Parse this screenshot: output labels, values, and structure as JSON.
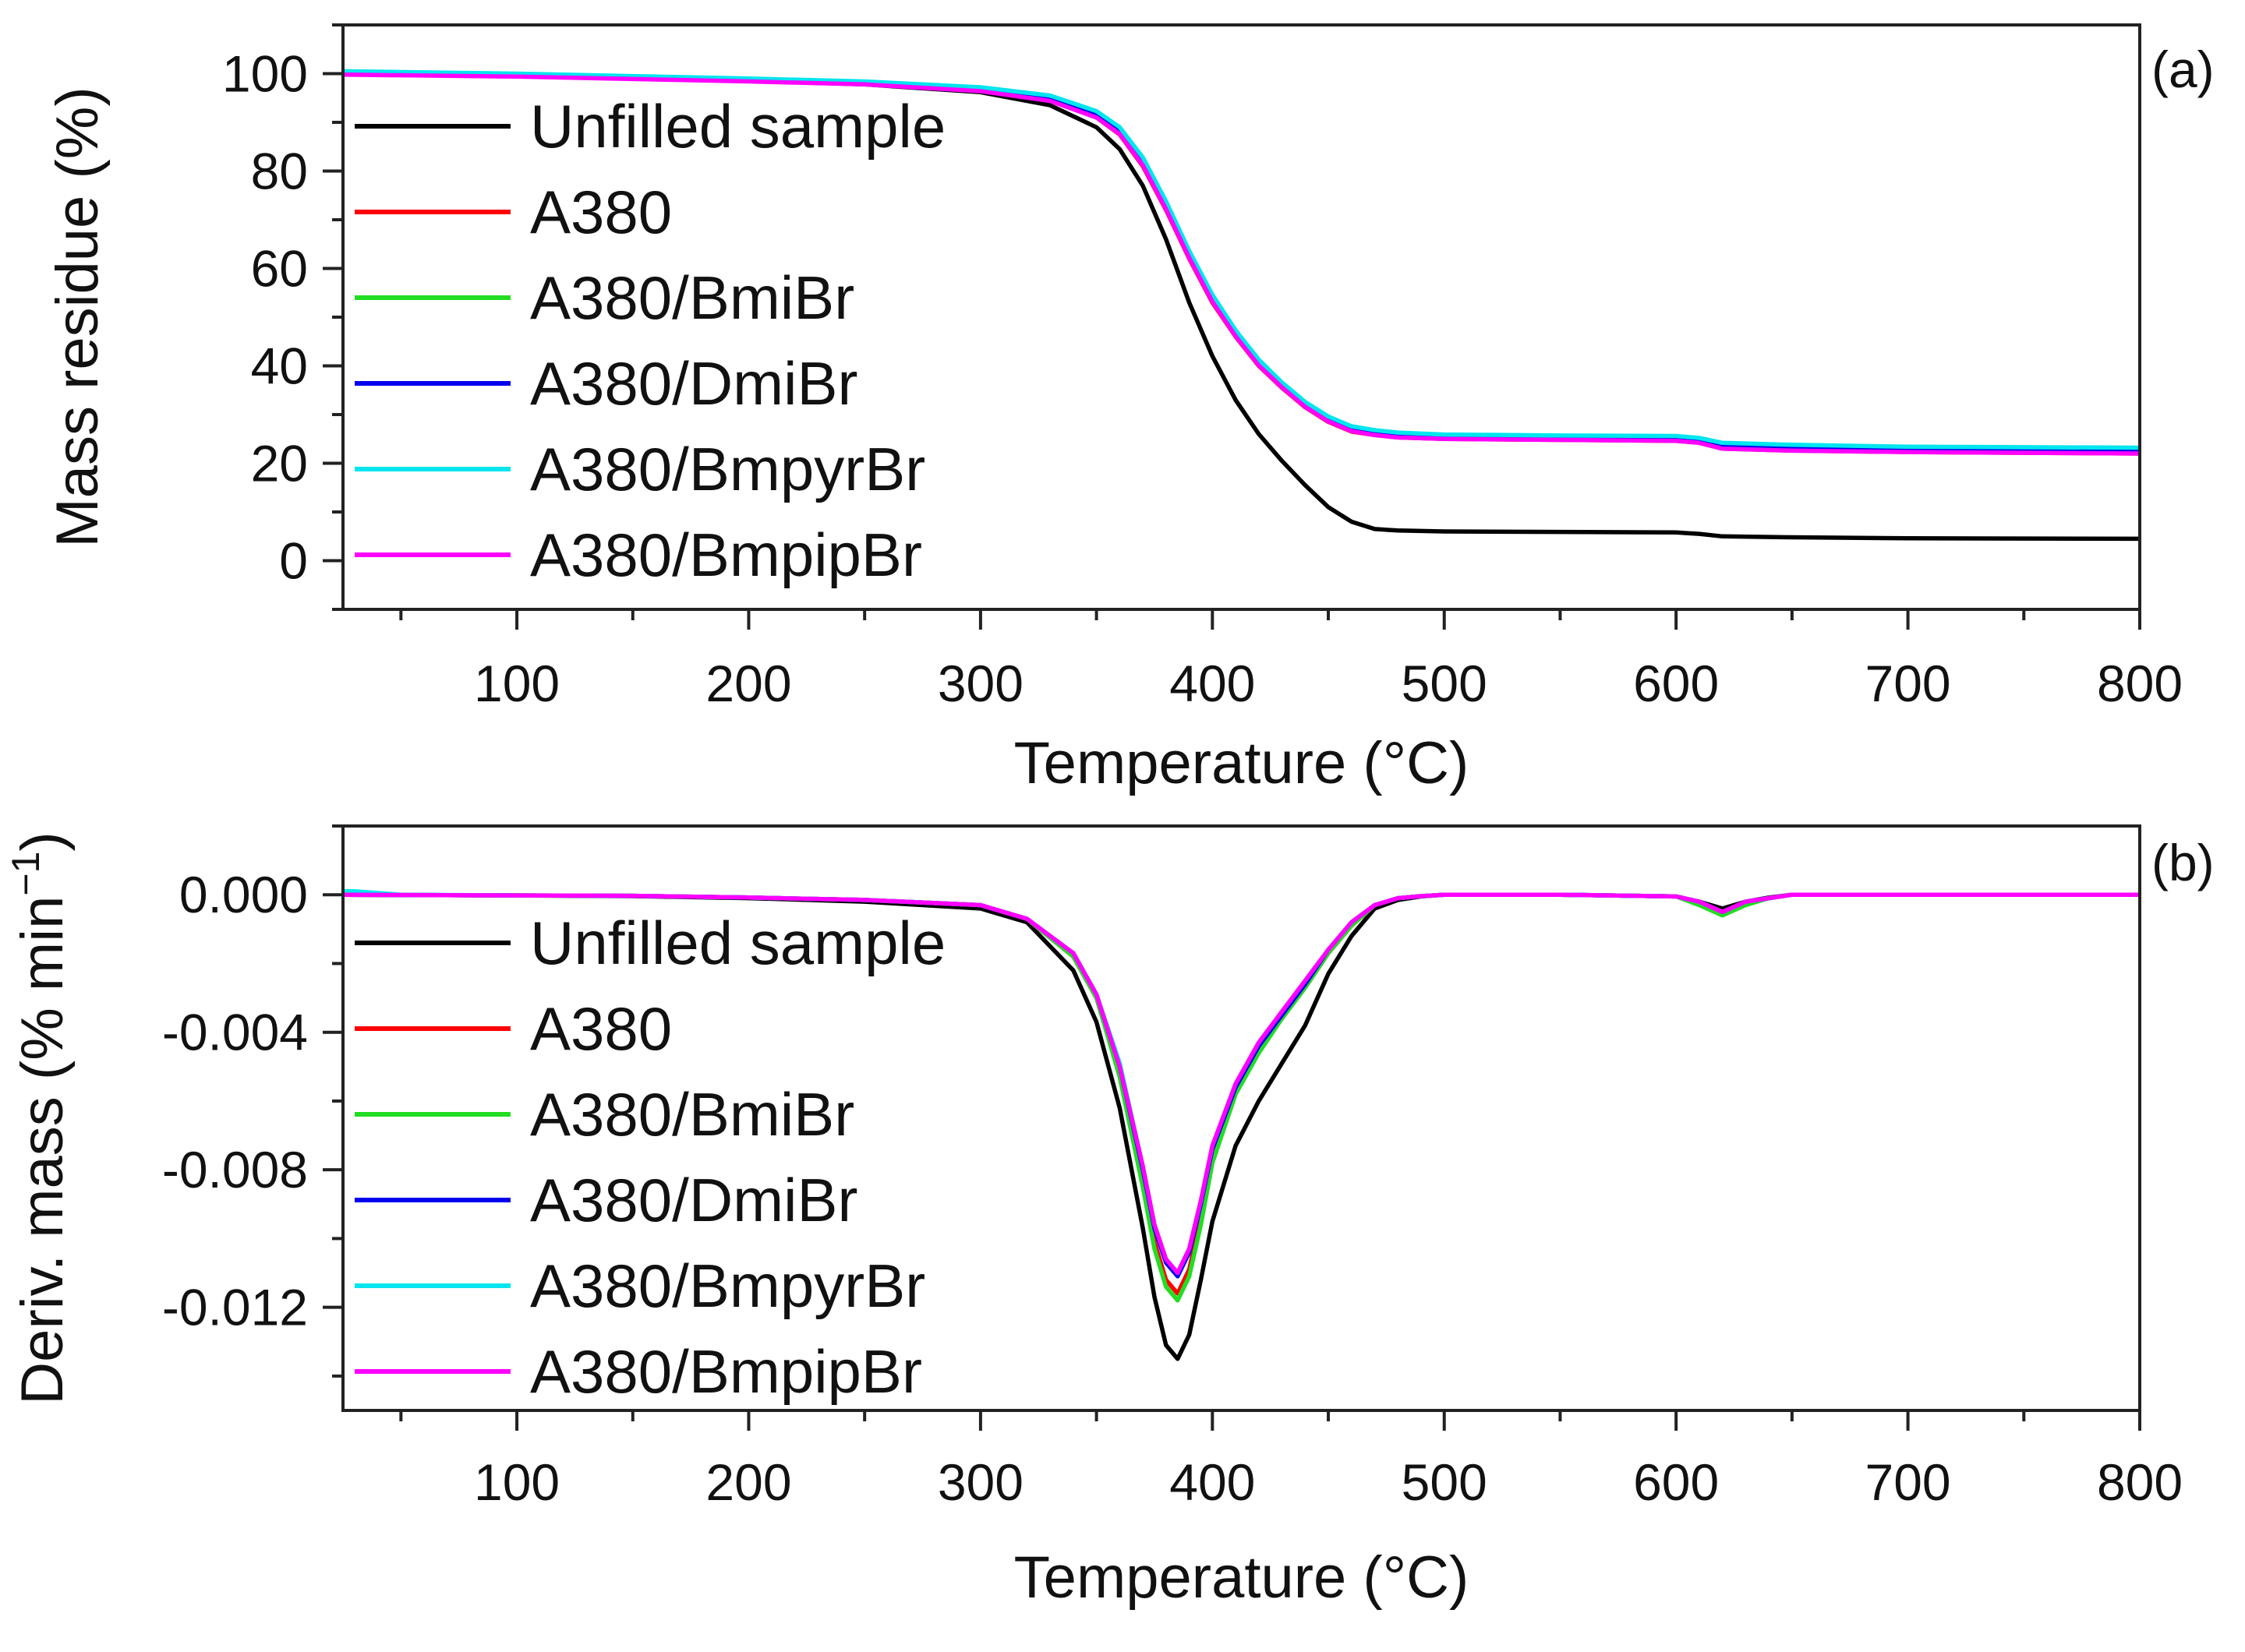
{
  "chart_data": [
    {
      "type": "line",
      "panel_label": "(a)",
      "xlabel": "Temperature (°C)",
      "ylabel": "Mass residue (%)",
      "xlim": [
        25,
        800
      ],
      "ylim": [
        -10,
        110
      ],
      "xticks": [
        100,
        200,
        300,
        400,
        500,
        600,
        700,
        800
      ],
      "yticks": [
        0,
        20,
        40,
        60,
        80,
        100
      ],
      "grid": false,
      "legend_position": "top-left",
      "series": [
        {
          "name": "Unfilled sample",
          "color": "#000000",
          "x": [
            25,
            100,
            200,
            250,
            300,
            330,
            350,
            360,
            370,
            380,
            390,
            400,
            410,
            420,
            430,
            440,
            450,
            460,
            470,
            480,
            500,
            550,
            600,
            610,
            620,
            650,
            700,
            800
          ],
          "y": [
            100,
            99.6,
            98.5,
            97.8,
            96.2,
            93.5,
            89,
            84.5,
            77,
            66,
            53,
            42,
            33,
            26,
            20.5,
            15.5,
            11,
            8,
            6.5,
            6.2,
            6,
            5.9,
            5.8,
            5.5,
            5,
            4.8,
            4.6,
            4.5
          ]
        },
        {
          "name": "A380",
          "color": "#ff0000",
          "x": [
            25,
            100,
            200,
            250,
            300,
            330,
            350,
            360,
            370,
            380,
            390,
            400,
            410,
            420,
            430,
            440,
            450,
            460,
            470,
            480,
            500,
            550,
            600,
            610,
            620,
            650,
            700,
            800
          ],
          "y": [
            100,
            99.6,
            98.6,
            98,
            96.6,
            94.5,
            91,
            87.5,
            81,
            72,
            62,
            53,
            46,
            40,
            35.5,
            31.5,
            28.5,
            26.5,
            25.8,
            25.3,
            25,
            24.8,
            24.6,
            24.2,
            23,
            22.6,
            22.3,
            22
          ]
        },
        {
          "name": "A380/BmiBr",
          "color": "#22dd22",
          "x": [
            25,
            100,
            200,
            250,
            300,
            330,
            350,
            360,
            370,
            380,
            390,
            400,
            410,
            420,
            430,
            440,
            450,
            460,
            470,
            480,
            500,
            550,
            600,
            610,
            620,
            650,
            700,
            800
          ],
          "y": [
            100,
            99.6,
            98.6,
            98,
            96.7,
            94.7,
            91.2,
            87.8,
            81.5,
            72.5,
            62.5,
            53.5,
            46.3,
            40.3,
            35.8,
            31.8,
            28.8,
            26.8,
            26,
            25.5,
            25.2,
            25,
            24.8,
            24.4,
            23.2,
            22.8,
            22.4,
            22.1
          ]
        },
        {
          "name": "A380/DmiBr",
          "color": "#0000ee",
          "x": [
            25,
            100,
            200,
            250,
            300,
            330,
            350,
            360,
            370,
            380,
            390,
            400,
            410,
            420,
            430,
            440,
            450,
            460,
            470,
            480,
            500,
            550,
            600,
            610,
            620,
            650,
            700,
            800
          ],
          "y": [
            100,
            99.6,
            98.7,
            98.1,
            96.8,
            95,
            91.8,
            88.5,
            82.3,
            73.3,
            63.2,
            54.2,
            47,
            41,
            36.3,
            32.2,
            29.2,
            27.3,
            26.5,
            26,
            25.6,
            25.4,
            25.2,
            24.8,
            23.8,
            23.4,
            23.1,
            22.8
          ]
        },
        {
          "name": "A380/BmpyrBr",
          "color": "#00e5ee",
          "x": [
            25,
            100,
            200,
            250,
            300,
            330,
            350,
            360,
            370,
            380,
            390,
            400,
            410,
            420,
            430,
            440,
            450,
            460,
            470,
            480,
            500,
            550,
            600,
            610,
            620,
            650,
            700,
            800
          ],
          "y": [
            100.5,
            100,
            99,
            98.4,
            97.2,
            95.5,
            92.3,
            89,
            82.8,
            73.8,
            63.6,
            54.6,
            47.3,
            41.3,
            36.6,
            32.6,
            29.6,
            27.6,
            26.8,
            26.3,
            25.9,
            25.7,
            25.6,
            25.2,
            24.2,
            23.8,
            23.4,
            23.2
          ]
        },
        {
          "name": "A380/BmpipBr",
          "color": "#ff00ff",
          "x": [
            25,
            100,
            200,
            250,
            300,
            330,
            350,
            360,
            370,
            380,
            390,
            400,
            410,
            420,
            430,
            440,
            450,
            460,
            470,
            480,
            500,
            550,
            600,
            610,
            620,
            650,
            700,
            800
          ],
          "y": [
            99.8,
            99.4,
            98.4,
            97.8,
            96.4,
            94.4,
            91,
            87.6,
            81.2,
            72.2,
            62.2,
            53.2,
            46.1,
            40.1,
            35.6,
            31.6,
            28.6,
            26.6,
            25.8,
            25.3,
            25,
            24.8,
            24.6,
            24.2,
            23,
            22.6,
            22.3,
            22
          ]
        }
      ]
    },
    {
      "type": "line",
      "panel_label": "(b)",
      "xlabel": "Temperature (°C)",
      "ylabel": "Deriv. mass (% min",
      "ylabel_sup": "−1",
      "ylabel_close": ")",
      "xlim": [
        25,
        800
      ],
      "ylim": [
        -0.015,
        0.002
      ],
      "xticks": [
        100,
        200,
        300,
        400,
        500,
        600,
        700,
        800
      ],
      "yticks": [
        0,
        -0.004,
        -0.008,
        -0.012
      ],
      "ytick_labels": [
        "0.000",
        "-0.004",
        "-0.008",
        "-0.012"
      ],
      "grid": false,
      "legend_position": "top-left",
      "series": [
        {
          "name": "Unfilled sample",
          "color": "#000000",
          "x": [
            25,
            100,
            150,
            200,
            250,
            300,
            320,
            340,
            350,
            360,
            370,
            375,
            380,
            385,
            390,
            395,
            400,
            410,
            420,
            430,
            440,
            450,
            460,
            470,
            480,
            490,
            500,
            550,
            600,
            610,
            620,
            630,
            640,
            650,
            700,
            800
          ],
          "y": [
            0,
            -2e-05,
            -4e-05,
            -0.0001,
            -0.0002,
            -0.0004,
            -0.0008,
            -0.0022,
            -0.0037,
            -0.0062,
            -0.0097,
            -0.0117,
            -0.0131,
            -0.0135,
            -0.0128,
            -0.0112,
            -0.0095,
            -0.0073,
            -0.006,
            -0.0049,
            -0.0038,
            -0.0023,
            -0.0012,
            -0.0004,
            -0.00015,
            -5e-05,
            0,
            0,
            -5e-05,
            -0.0002,
            -0.0004,
            -0.0002,
            -8e-05,
            0,
            0,
            0
          ]
        },
        {
          "name": "A380",
          "color": "#ff0000",
          "x": [
            25,
            100,
            150,
            200,
            250,
            300,
            320,
            340,
            350,
            360,
            370,
            375,
            380,
            385,
            390,
            395,
            400,
            410,
            420,
            430,
            440,
            450,
            460,
            470,
            480,
            490,
            500,
            550,
            600,
            610,
            620,
            630,
            640,
            650,
            700,
            800
          ],
          "y": [
            0,
            -2e-05,
            -3e-05,
            -8e-05,
            -0.00015,
            -0.0003,
            -0.0007,
            -0.0018,
            -0.003,
            -0.0052,
            -0.0083,
            -0.0101,
            -0.0112,
            -0.0116,
            -0.0109,
            -0.0094,
            -0.0077,
            -0.0057,
            -0.0045,
            -0.0036,
            -0.0027,
            -0.0017,
            -0.0009,
            -0.0003,
            -0.0001,
            -4e-05,
            0,
            0,
            -5e-05,
            -0.00025,
            -0.0005,
            -0.00025,
            -0.0001,
            0,
            0,
            0
          ]
        },
        {
          "name": "A380/BmiBr",
          "color": "#22dd22",
          "x": [
            25,
            100,
            150,
            200,
            250,
            300,
            320,
            340,
            350,
            360,
            370,
            375,
            380,
            385,
            390,
            395,
            400,
            410,
            420,
            430,
            440,
            450,
            460,
            470,
            480,
            490,
            500,
            550,
            600,
            610,
            620,
            630,
            640,
            650,
            700,
            800
          ],
          "y": [
            0,
            -2e-05,
            -3e-05,
            -8e-05,
            -0.00015,
            -0.0003,
            -0.0007,
            -0.0018,
            -0.003,
            -0.0053,
            -0.0085,
            -0.0103,
            -0.0114,
            -0.0118,
            -0.0111,
            -0.0096,
            -0.0078,
            -0.0058,
            -0.0046,
            -0.0036,
            -0.0027,
            -0.0017,
            -0.0009,
            -0.0003,
            -0.0001,
            -4e-05,
            0,
            0,
            -5e-05,
            -0.0003,
            -0.0006,
            -0.0003,
            -0.0001,
            0,
            0,
            0
          ]
        },
        {
          "name": "A380/DmiBr",
          "color": "#0000ee",
          "x": [
            25,
            100,
            150,
            200,
            250,
            300,
            320,
            340,
            350,
            360,
            370,
            375,
            380,
            385,
            390,
            395,
            400,
            410,
            420,
            430,
            440,
            450,
            460,
            470,
            480,
            490,
            500,
            550,
            600,
            610,
            620,
            630,
            640,
            650,
            700,
            800
          ],
          "y": [
            0,
            -2e-05,
            -3e-05,
            -8e-05,
            -0.00015,
            -0.0003,
            -0.0007,
            -0.0017,
            -0.0029,
            -0.005,
            -0.008,
            -0.0097,
            -0.0107,
            -0.0111,
            -0.0104,
            -0.009,
            -0.0074,
            -0.0056,
            -0.0044,
            -0.0035,
            -0.0026,
            -0.0016,
            -0.0008,
            -0.0003,
            -0.0001,
            -4e-05,
            0,
            0,
            -5e-05,
            -0.0002,
            -0.0005,
            -0.0002,
            -0.0001,
            0,
            0,
            0
          ]
        },
        {
          "name": "A380/BmpyrBr",
          "color": "#00e5ee",
          "x": [
            25,
            30,
            40,
            50,
            100,
            150,
            200,
            250,
            300,
            320,
            340,
            350,
            360,
            370,
            375,
            380,
            385,
            390,
            395,
            400,
            410,
            420,
            430,
            440,
            450,
            460,
            470,
            480,
            490,
            500,
            550,
            600,
            610,
            620,
            630,
            640,
            650,
            700,
            800
          ],
          "y": [
            0.0001,
            0.0001,
            5e-05,
            0,
            -2e-05,
            -3e-05,
            -8e-05,
            -0.00015,
            -0.0003,
            -0.0007,
            -0.0017,
            -0.0029,
            -0.0049,
            -0.0079,
            -0.0096,
            -0.0106,
            -0.011,
            -0.0103,
            -0.0089,
            -0.0073,
            -0.0055,
            -0.0043,
            -0.0034,
            -0.0025,
            -0.0016,
            -0.0008,
            -0.0003,
            -0.0001,
            -4e-05,
            0,
            0,
            -5e-05,
            -0.0002,
            -0.0005,
            -0.0002,
            -0.0001,
            0,
            0,
            0
          ]
        },
        {
          "name": "A380/BmpipBr",
          "color": "#ff00ff",
          "x": [
            25,
            100,
            150,
            200,
            250,
            300,
            320,
            340,
            350,
            360,
            370,
            375,
            380,
            385,
            390,
            395,
            400,
            410,
            420,
            430,
            440,
            450,
            460,
            470,
            480,
            490,
            500,
            550,
            600,
            610,
            620,
            630,
            640,
            650,
            700,
            800
          ],
          "y": [
            0,
            -2e-05,
            -3e-05,
            -8e-05,
            -0.00015,
            -0.0003,
            -0.0007,
            -0.0017,
            -0.0029,
            -0.005,
            -0.0079,
            -0.0096,
            -0.0106,
            -0.011,
            -0.0103,
            -0.0089,
            -0.0073,
            -0.0055,
            -0.0043,
            -0.0034,
            -0.0025,
            -0.0016,
            -0.0008,
            -0.0003,
            -0.0001,
            -4e-05,
            0,
            0,
            -5e-05,
            -0.0002,
            -0.0005,
            -0.0002,
            -0.0001,
            0,
            0,
            0
          ]
        }
      ]
    }
  ]
}
